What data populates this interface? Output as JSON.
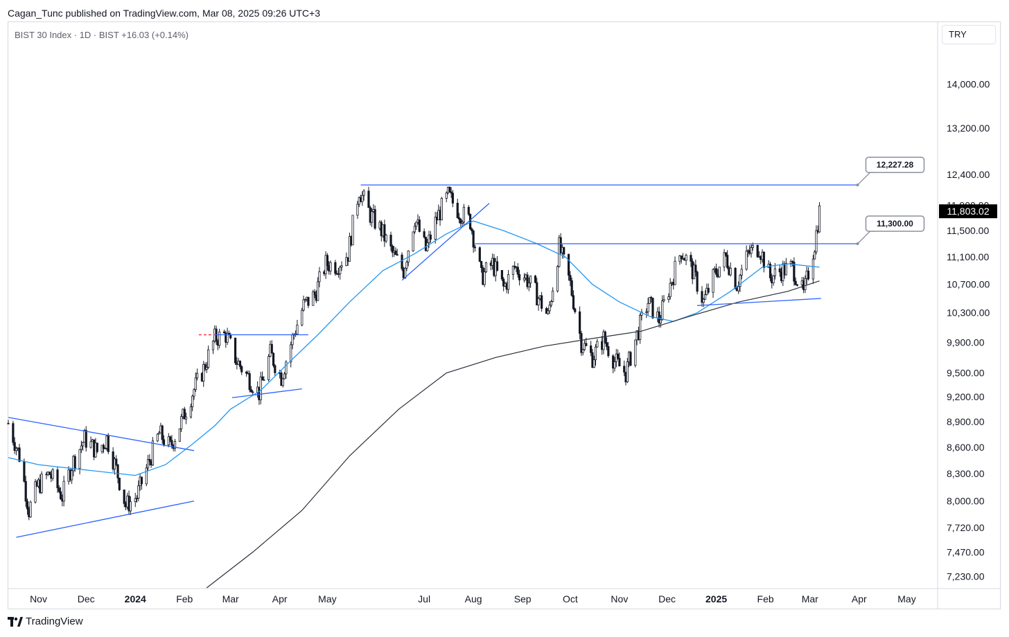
{
  "header": {
    "publisher_line": "Cagan_Tunc published on TradingView.com, Mar 08, 2025 09:26 UTC+3",
    "symbol_line": "BIST 30 Index · 1D · BIST  +16.03 (+0.14%)",
    "currency": "TRY"
  },
  "footer": {
    "brand": "TradingView",
    "logo_icon": "tradingview-logo-icon"
  },
  "colors": {
    "candle": "#131722",
    "ma_fast": "#2196f3",
    "ma_slow": "#2a2e39",
    "trendline": "#2962ff",
    "resistance_marker": "#f23645",
    "price_tag_bg": "#000000"
  },
  "chart_data": {
    "type": "candlestick",
    "y_scale": "log",
    "ylim": [
      7120,
      15200
    ],
    "y_ticks": [
      "14,000.00",
      "13,200.00",
      "12,400.00",
      "11,900.00",
      "11,500.00",
      "11,100.00",
      "10,700.00",
      "10,300.00",
      "9,900.00",
      "9,500.00",
      "9,200.00",
      "8,900.00",
      "8,600.00",
      "8,300.00",
      "8,000.00",
      "7,720.00",
      "7,470.00",
      "7,230.00"
    ],
    "y_tick_values": [
      14000,
      13200,
      12400,
      11900,
      11500,
      11100,
      10700,
      10300,
      9900,
      9500,
      9200,
      8900,
      8600,
      8300,
      8000,
      7720,
      7470,
      7230
    ],
    "x_range": [
      "2023-10-13",
      "2025-05-20"
    ],
    "x_ticks": [
      {
        "label": "Nov",
        "date": "2023-11-01",
        "bold": false
      },
      {
        "label": "Dec",
        "date": "2023-12-01",
        "bold": false
      },
      {
        "label": "2024",
        "date": "2024-01-01",
        "bold": true
      },
      {
        "label": "Feb",
        "date": "2024-02-01",
        "bold": false
      },
      {
        "label": "Mar",
        "date": "2024-03-01",
        "bold": false
      },
      {
        "label": "Apr",
        "date": "2024-04-01",
        "bold": false
      },
      {
        "label": "May",
        "date": "2024-05-01",
        "bold": false
      },
      {
        "label": "Jul",
        "date": "2024-07-01",
        "bold": false
      },
      {
        "label": "Aug",
        "date": "2024-08-01",
        "bold": false
      },
      {
        "label": "Sep",
        "date": "2024-09-01",
        "bold": false
      },
      {
        "label": "Oct",
        "date": "2024-10-01",
        "bold": false
      },
      {
        "label": "Nov",
        "date": "2024-11-01",
        "bold": false
      },
      {
        "label": "Dec",
        "date": "2024-12-01",
        "bold": false
      },
      {
        "label": "2025",
        "date": "2025-01-01",
        "bold": true
      },
      {
        "label": "Feb",
        "date": "2025-02-01",
        "bold": false
      },
      {
        "label": "Mar",
        "date": "2025-03-01",
        "bold": false
      },
      {
        "label": "Apr",
        "date": "2025-04-01",
        "bold": false
      },
      {
        "label": "May",
        "date": "2025-05-01",
        "bold": false
      }
    ],
    "last_price": {
      "value": 11803.02,
      "label": "11,803.02"
    },
    "price_path": [
      [
        "2023-10-13",
        8880
      ],
      [
        "2023-10-20",
        8500
      ],
      [
        "2023-10-26",
        7900
      ],
      [
        "2023-10-31",
        8150
      ],
      [
        "2023-11-08",
        8300
      ],
      [
        "2023-11-16",
        8050
      ],
      [
        "2023-11-22",
        8400
      ],
      [
        "2023-11-30",
        8700
      ],
      [
        "2023-12-08",
        8550
      ],
      [
        "2023-12-14",
        8700
      ],
      [
        "2023-12-20",
        8350
      ],
      [
        "2023-12-26",
        7950
      ],
      [
        "2024-01-02",
        8050
      ],
      [
        "2024-01-09",
        8400
      ],
      [
        "2024-01-16",
        8760
      ],
      [
        "2024-01-23",
        8600
      ],
      [
        "2024-01-30",
        8900
      ],
      [
        "2024-02-06",
        9250
      ],
      [
        "2024-02-13",
        9550
      ],
      [
        "2024-02-20",
        9950
      ],
      [
        "2024-02-27",
        10000
      ],
      [
        "2024-03-05",
        9650
      ],
      [
        "2024-03-12",
        9450
      ],
      [
        "2024-03-19",
        9250
      ],
      [
        "2024-03-26",
        9750
      ],
      [
        "2024-04-02",
        9450
      ],
      [
        "2024-04-09",
        9950
      ],
      [
        "2024-04-16",
        10400
      ],
      [
        "2024-04-23",
        10550
      ],
      [
        "2024-04-30",
        11000
      ],
      [
        "2024-05-07",
        10980
      ],
      [
        "2024-05-14",
        11150
      ],
      [
        "2024-05-21",
        12150
      ],
      [
        "2024-05-28",
        11750
      ],
      [
        "2024-06-04",
        11500
      ],
      [
        "2024-06-11",
        11150
      ],
      [
        "2024-06-18",
        10900
      ],
      [
        "2024-06-25",
        11700
      ],
      [
        "2024-07-02",
        11200
      ],
      [
        "2024-07-09",
        11700
      ],
      [
        "2024-07-16",
        12050
      ],
      [
        "2024-07-23",
        11800
      ],
      [
        "2024-07-30",
        11650
      ],
      [
        "2024-08-06",
        10800
      ],
      [
        "2024-08-13",
        11000
      ],
      [
        "2024-08-20",
        10650
      ],
      [
        "2024-08-27",
        10950
      ],
      [
        "2024-09-03",
        10800
      ],
      [
        "2024-09-10",
        10550
      ],
      [
        "2024-09-17",
        10250
      ],
      [
        "2024-09-24",
        11250
      ],
      [
        "2024-10-01",
        10700
      ],
      [
        "2024-10-08",
        9900
      ],
      [
        "2024-10-15",
        9700
      ],
      [
        "2024-10-22",
        9950
      ],
      [
        "2024-10-29",
        9650
      ],
      [
        "2024-11-05",
        9500
      ],
      [
        "2024-11-12",
        10000
      ],
      [
        "2024-11-19",
        10450
      ],
      [
        "2024-11-26",
        10200
      ],
      [
        "2024-12-03",
        10700
      ],
      [
        "2024-12-10",
        11200
      ],
      [
        "2024-12-17",
        10900
      ],
      [
        "2024-12-24",
        10450
      ],
      [
        "2024-12-31",
        10850
      ],
      [
        "2025-01-07",
        11100
      ],
      [
        "2025-01-14",
        10700
      ],
      [
        "2025-01-21",
        11150
      ],
      [
        "2025-01-28",
        11250
      ],
      [
        "2025-02-04",
        10800
      ],
      [
        "2025-02-11",
        10900
      ],
      [
        "2025-02-18",
        10950
      ],
      [
        "2025-02-25",
        10550
      ],
      [
        "2025-03-04",
        11300
      ],
      [
        "2025-03-07",
        11803
      ]
    ],
    "ma50": [
      [
        "2023-10-13",
        8480
      ],
      [
        "2023-11-01",
        8400
      ],
      [
        "2023-12-01",
        8340
      ],
      [
        "2024-01-01",
        8280
      ],
      [
        "2024-01-20",
        8400
      ],
      [
        "2024-02-05",
        8620
      ],
      [
        "2024-02-20",
        8850
      ],
      [
        "2024-03-01",
        9050
      ],
      [
        "2024-03-20",
        9280
      ],
      [
        "2024-04-05",
        9600
      ],
      [
        "2024-04-25",
        10000
      ],
      [
        "2024-05-15",
        10450
      ],
      [
        "2024-06-05",
        10900
      ],
      [
        "2024-06-25",
        11150
      ],
      [
        "2024-07-15",
        11450
      ],
      [
        "2024-08-01",
        11650
      ],
      [
        "2024-08-20",
        11500
      ],
      [
        "2024-09-10",
        11300
      ],
      [
        "2024-09-28",
        11100
      ],
      [
        "2024-10-15",
        10700
      ],
      [
        "2024-11-01",
        10450
      ],
      [
        "2024-11-20",
        10250
      ],
      [
        "2024-12-05",
        10180
      ],
      [
        "2024-12-20",
        10300
      ],
      [
        "2025-01-10",
        10600
      ],
      [
        "2025-01-30",
        10950
      ],
      [
        "2025-02-15",
        11000
      ],
      [
        "2025-03-07",
        10950
      ]
    ],
    "ma200": [
      [
        "2024-02-15",
        7120
      ],
      [
        "2024-03-15",
        7470
      ],
      [
        "2024-04-15",
        7900
      ],
      [
        "2024-05-15",
        8500
      ],
      [
        "2024-06-15",
        9050
      ],
      [
        "2024-07-15",
        9500
      ],
      [
        "2024-08-15",
        9700
      ],
      [
        "2024-09-15",
        9850
      ],
      [
        "2024-10-15",
        9950
      ],
      [
        "2024-11-15",
        10050
      ],
      [
        "2024-12-15",
        10250
      ],
      [
        "2025-01-15",
        10450
      ],
      [
        "2025-02-15",
        10600
      ],
      [
        "2025-03-07",
        10750
      ]
    ],
    "trendlines": [
      {
        "from": [
          "2023-10-13",
          8950
        ],
        "to": [
          "2024-02-07",
          8560
        ]
      },
      {
        "from": [
          "2023-10-18",
          7620
        ],
        "to": [
          "2024-02-07",
          8000
        ]
      },
      {
        "from": [
          "2024-02-20",
          10000
        ],
        "to": [
          "2024-04-19",
          10000
        ]
      },
      {
        "from": [
          "2024-03-02",
          9190
        ],
        "to": [
          "2024-04-15",
          9300
        ]
      },
      {
        "from": [
          "2024-05-22",
          12227.28
        ],
        "to": [
          "2025-03-31",
          12227.28
        ]
      },
      {
        "from": [
          "2024-06-17",
          10760
        ],
        "to": [
          "2024-08-11",
          11930
        ]
      },
      {
        "from": [
          "2024-08-02",
          11300
        ],
        "to": [
          "2025-03-31",
          11300
        ]
      },
      {
        "from": [
          "2024-12-20",
          10400
        ],
        "to": [
          "2025-03-08",
          10500
        ]
      }
    ],
    "resistance_marker": {
      "from": [
        "2024-02-10",
        10000
      ],
      "to": [
        "2024-02-20",
        10000
      ]
    },
    "price_callouts": [
      {
        "anchor": [
          "2025-03-31",
          12227.28
        ],
        "label": "12,227.28"
      },
      {
        "anchor": [
          "2025-03-31",
          11300
        ],
        "label": "11,300.00"
      }
    ]
  }
}
